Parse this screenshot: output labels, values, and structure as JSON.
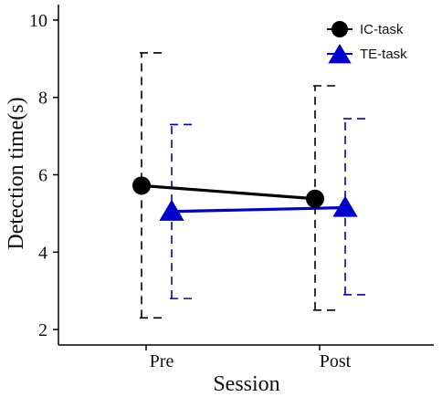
{
  "chart_data": {
    "type": "line",
    "title": "",
    "xlabel": "Session",
    "ylabel": "Detection time(s)",
    "categories": [
      "Pre",
      "Post"
    ],
    "ylim": [
      1.6,
      10.4
    ],
    "yticks": [
      "2",
      "4",
      "6",
      "8",
      "10"
    ],
    "grid": false,
    "legend_position": "top-right",
    "series": [
      {
        "name": "IC-task",
        "marker": "circle",
        "color": "#000000",
        "values": [
          5.72,
          5.38
        ],
        "error_low": [
          2.3,
          2.5
        ],
        "error_high": [
          9.15,
          8.3
        ]
      },
      {
        "name": "TE-task",
        "marker": "triangle",
        "color": "#0000cc",
        "values": [
          5.05,
          5.15
        ],
        "error_low": [
          2.8,
          2.9
        ],
        "error_high": [
          7.3,
          7.45
        ]
      }
    ]
  }
}
